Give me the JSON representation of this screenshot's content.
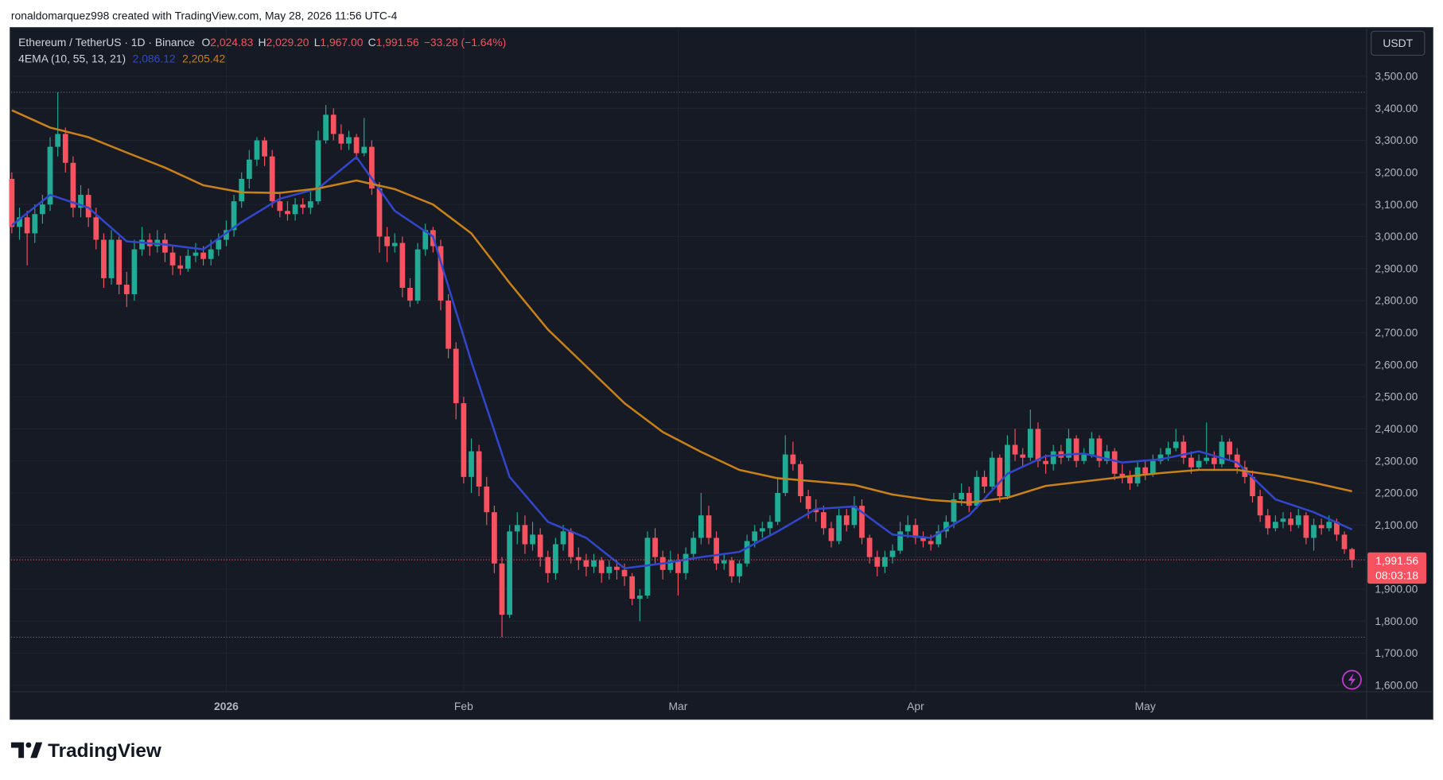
{
  "header": "ronaldomarquez998 created with TradingView.com, May 28, 2026 11:56 UTC-4",
  "brand": "TradingView",
  "chart_data": {
    "type": "candlestick",
    "legend": {
      "symbol": "Ethereum / TetherUS · 1D · Binance",
      "fields": [
        {
          "key": "O",
          "text": "2,024.83"
        },
        {
          "key": "H",
          "text": "2,029.20"
        },
        {
          "key": "L",
          "text": "1,967.00"
        },
        {
          "key": "C",
          "text": "1,991.56"
        }
      ],
      "change": "−33.28 (−1.64%)",
      "indicator": "4EMA (10, 55, 13, 21)"
    },
    "currency": "USDT",
    "last_price_label": "1,991.56",
    "countdown": "08:03:18",
    "up_color": "#22ab94",
    "down_color": "#f7525f",
    "xlim": [
      -0.1,
      176.9
    ],
    "xticks": [
      {
        "value": 28,
        "label": "2026"
      },
      {
        "value": 59,
        "label": "Feb"
      },
      {
        "value": 87,
        "label": "Mar"
      },
      {
        "value": 118,
        "label": "Apr"
      },
      {
        "value": 148,
        "label": "May"
      }
    ],
    "ylim": [
      1580,
      3649
    ],
    "yticks": [
      {
        "value": 1600,
        "label": "1,600.00"
      },
      {
        "value": 1700,
        "label": "1,700.00"
      },
      {
        "value": 1800,
        "label": "1,800.00"
      },
      {
        "value": 1900,
        "label": "1,900.00"
      },
      {
        "value": 2000,
        "label": "2,000.00"
      },
      {
        "value": 2100,
        "label": "2,100.00"
      },
      {
        "value": 2200,
        "label": "2,200.00"
      },
      {
        "value": 2300,
        "label": "2,300.00"
      },
      {
        "value": 2400,
        "label": "2,400.00"
      },
      {
        "value": 2500,
        "label": "2,500.00"
      },
      {
        "value": 2600,
        "label": "2,600.00"
      },
      {
        "value": 2700,
        "label": "2,700.00"
      },
      {
        "value": 2800,
        "label": "2,800.00"
      },
      {
        "value": 2900,
        "label": "2,900.00"
      },
      {
        "value": 3000,
        "label": "3,000.00"
      },
      {
        "value": 3100,
        "label": "3,100.00"
      },
      {
        "value": 3200,
        "label": "3,200.00"
      },
      {
        "value": 3300,
        "label": "3,300.00"
      },
      {
        "value": 3400,
        "label": "3,400.00"
      },
      {
        "value": 3500,
        "label": "3,500.00"
      }
    ],
    "grid": true,
    "ohlc": [
      [
        3180,
        3200,
        3010,
        3030
      ],
      [
        3030,
        3090,
        2990,
        3060
      ],
      [
        3060,
        3080,
        2910,
        3010
      ],
      [
        3010,
        3100,
        2980,
        3070
      ],
      [
        3070,
        3130,
        3040,
        3100
      ],
      [
        3100,
        3310,
        3080,
        3280
      ],
      [
        3280,
        3450,
        3250,
        3320
      ],
      [
        3320,
        3340,
        3200,
        3230
      ],
      [
        3230,
        3250,
        3060,
        3090
      ],
      [
        3090,
        3160,
        3060,
        3130
      ],
      [
        3130,
        3150,
        3030,
        3060
      ],
      [
        3060,
        3090,
        2960,
        2990
      ],
      [
        2990,
        3010,
        2840,
        2870
      ],
      [
        2870,
        3020,
        2850,
        2990
      ],
      [
        2990,
        3000,
        2820,
        2850
      ],
      [
        2850,
        2890,
        2780,
        2820
      ],
      [
        2820,
        2990,
        2800,
        2960
      ],
      [
        2960,
        3030,
        2940,
        2990
      ],
      [
        2990,
        3010,
        2940,
        2970
      ],
      [
        2970,
        3020,
        2950,
        2990
      ],
      [
        2990,
        3010,
        2920,
        2950
      ],
      [
        2950,
        2970,
        2880,
        2910
      ],
      [
        2910,
        2940,
        2880,
        2900
      ],
      [
        2900,
        2960,
        2890,
        2940
      ],
      [
        2940,
        2980,
        2920,
        2950
      ],
      [
        2950,
        2970,
        2910,
        2930
      ],
      [
        2930,
        2990,
        2910,
        2960
      ],
      [
        2960,
        3010,
        2940,
        2990
      ],
      [
        2990,
        3050,
        2970,
        3020
      ],
      [
        3020,
        3130,
        3000,
        3110
      ],
      [
        3110,
        3200,
        3090,
        3180
      ],
      [
        3180,
        3270,
        3150,
        3240
      ],
      [
        3240,
        3310,
        3220,
        3300
      ],
      [
        3300,
        3310,
        3220,
        3250
      ],
      [
        3250,
        3270,
        3090,
        3110
      ],
      [
        3110,
        3140,
        3060,
        3080
      ],
      [
        3080,
        3110,
        3050,
        3070
      ],
      [
        3070,
        3120,
        3050,
        3100
      ],
      [
        3100,
        3120,
        3070,
        3090
      ],
      [
        3090,
        3140,
        3070,
        3110
      ],
      [
        3110,
        3330,
        3100,
        3300
      ],
      [
        3300,
        3410,
        3290,
        3380
      ],
      [
        3380,
        3400,
        3300,
        3320
      ],
      [
        3320,
        3350,
        3270,
        3290
      ],
      [
        3290,
        3330,
        3270,
        3310
      ],
      [
        3310,
        3320,
        3240,
        3260
      ],
      [
        3260,
        3370,
        3250,
        3280
      ],
      [
        3280,
        3300,
        3130,
        3150
      ],
      [
        3150,
        3170,
        2950,
        3000
      ],
      [
        3000,
        3030,
        2920,
        2970
      ],
      [
        2970,
        3010,
        2950,
        2980
      ],
      [
        2980,
        3000,
        2810,
        2840
      ],
      [
        2840,
        2870,
        2780,
        2800
      ],
      [
        2800,
        2980,
        2790,
        2960
      ],
      [
        2960,
        3040,
        2940,
        3020
      ],
      [
        3020,
        3030,
        2950,
        2970
      ],
      [
        2970,
        2990,
        2770,
        2800
      ],
      [
        2800,
        2820,
        2620,
        2650
      ],
      [
        2650,
        2670,
        2430,
        2480
      ],
      [
        2480,
        2500,
        2230,
        2250
      ],
      [
        2250,
        2370,
        2200,
        2330
      ],
      [
        2330,
        2350,
        2190,
        2220
      ],
      [
        2220,
        2250,
        2100,
        2140
      ],
      [
        2140,
        2160,
        1950,
        1980
      ],
      [
        1980,
        2000,
        1750,
        1820
      ],
      [
        1820,
        2100,
        1810,
        2080
      ],
      [
        2080,
        2140,
        2040,
        2100
      ],
      [
        2100,
        2130,
        2010,
        2040
      ],
      [
        2040,
        2110,
        2020,
        2070
      ],
      [
        2070,
        2090,
        1970,
        2000
      ],
      [
        2000,
        2020,
        1920,
        1950
      ],
      [
        1950,
        2060,
        1930,
        2040
      ],
      [
        2040,
        2100,
        2020,
        2080
      ],
      [
        2080,
        2090,
        1980,
        2000
      ],
      [
        2000,
        2030,
        1960,
        1990
      ],
      [
        1990,
        2010,
        1940,
        1970
      ],
      [
        1970,
        2010,
        1950,
        1990
      ],
      [
        1990,
        2000,
        1920,
        1950
      ],
      [
        1950,
        1990,
        1930,
        1970
      ],
      [
        1970,
        1990,
        1930,
        1960
      ],
      [
        1960,
        1980,
        1910,
        1940
      ],
      [
        1940,
        1950,
        1850,
        1870
      ],
      [
        1870,
        1900,
        1800,
        1880
      ],
      [
        1880,
        2080,
        1870,
        2060
      ],
      [
        2060,
        2090,
        1980,
        2000
      ],
      [
        2000,
        2020,
        1930,
        1960
      ],
      [
        1960,
        2020,
        1950,
        1990
      ],
      [
        1990,
        2010,
        1880,
        1950
      ],
      [
        1950,
        2030,
        1930,
        2010
      ],
      [
        2010,
        2080,
        1990,
        2060
      ],
      [
        2060,
        2200,
        2040,
        2130
      ],
      [
        2130,
        2160,
        2040,
        2060
      ],
      [
        2060,
        2080,
        1960,
        1980
      ],
      [
        1980,
        2010,
        1960,
        1990
      ],
      [
        1990,
        2000,
        1920,
        1940
      ],
      [
        1940,
        1990,
        1920,
        1980
      ],
      [
        1980,
        2070,
        1970,
        2050
      ],
      [
        2050,
        2100,
        2030,
        2080
      ],
      [
        2080,
        2110,
        2060,
        2090
      ],
      [
        2090,
        2130,
        2070,
        2110
      ],
      [
        2110,
        2250,
        2100,
        2200
      ],
      [
        2200,
        2380,
        2190,
        2320
      ],
      [
        2320,
        2360,
        2270,
        2290
      ],
      [
        2290,
        2300,
        2170,
        2190
      ],
      [
        2190,
        2210,
        2120,
        2150
      ],
      [
        2150,
        2180,
        2110,
        2140
      ],
      [
        2140,
        2160,
        2070,
        2090
      ],
      [
        2090,
        2110,
        2030,
        2050
      ],
      [
        2050,
        2150,
        2040,
        2130
      ],
      [
        2130,
        2150,
        2080,
        2100
      ],
      [
        2100,
        2190,
        2090,
        2160
      ],
      [
        2160,
        2180,
        2040,
        2060
      ],
      [
        2060,
        2070,
        1980,
        2000
      ],
      [
        2000,
        2020,
        1940,
        1970
      ],
      [
        1970,
        2020,
        1950,
        2000
      ],
      [
        2000,
        2040,
        1980,
        2020
      ],
      [
        2020,
        2110,
        2010,
        2080
      ],
      [
        2080,
        2130,
        2060,
        2100
      ],
      [
        2100,
        2120,
        2040,
        2060
      ],
      [
        2060,
        2080,
        2030,
        2050
      ],
      [
        2050,
        2070,
        2020,
        2040
      ],
      [
        2040,
        2100,
        2030,
        2080
      ],
      [
        2080,
        2130,
        2060,
        2110
      ],
      [
        2110,
        2200,
        2090,
        2180
      ],
      [
        2180,
        2230,
        2160,
        2200
      ],
      [
        2200,
        2220,
        2140,
        2160
      ],
      [
        2160,
        2270,
        2150,
        2250
      ],
      [
        2250,
        2270,
        2200,
        2220
      ],
      [
        2220,
        2330,
        2210,
        2310
      ],
      [
        2310,
        2320,
        2170,
        2190
      ],
      [
        2190,
        2380,
        2180,
        2350
      ],
      [
        2350,
        2400,
        2300,
        2320
      ],
      [
        2320,
        2340,
        2280,
        2310
      ],
      [
        2310,
        2460,
        2300,
        2400
      ],
      [
        2400,
        2420,
        2280,
        2300
      ],
      [
        2300,
        2320,
        2260,
        2290
      ],
      [
        2290,
        2350,
        2270,
        2330
      ],
      [
        2330,
        2350,
        2290,
        2310
      ],
      [
        2310,
        2400,
        2300,
        2370
      ],
      [
        2370,
        2380,
        2280,
        2300
      ],
      [
        2300,
        2340,
        2290,
        2320
      ],
      [
        2320,
        2390,
        2310,
        2370
      ],
      [
        2370,
        2380,
        2280,
        2300
      ],
      [
        2300,
        2350,
        2290,
        2330
      ],
      [
        2330,
        2340,
        2240,
        2260
      ],
      [
        2260,
        2290,
        2230,
        2250
      ],
      [
        2250,
        2270,
        2210,
        2230
      ],
      [
        2230,
        2300,
        2220,
        2280
      ],
      [
        2280,
        2300,
        2240,
        2260
      ],
      [
        2260,
        2320,
        2250,
        2300
      ],
      [
        2300,
        2340,
        2290,
        2320
      ],
      [
        2320,
        2360,
        2300,
        2340
      ],
      [
        2340,
        2400,
        2330,
        2360
      ],
      [
        2360,
        2380,
        2290,
        2310
      ],
      [
        2310,
        2330,
        2260,
        2280
      ],
      [
        2280,
        2320,
        2270,
        2300
      ],
      [
        2300,
        2420,
        2290,
        2310
      ],
      [
        2310,
        2330,
        2270,
        2290
      ],
      [
        2290,
        2380,
        2280,
        2360
      ],
      [
        2360,
        2370,
        2300,
        2320
      ],
      [
        2320,
        2340,
        2260,
        2280
      ],
      [
        2280,
        2300,
        2230,
        2250
      ],
      [
        2250,
        2270,
        2170,
        2190
      ],
      [
        2190,
        2210,
        2110,
        2130
      ],
      [
        2130,
        2150,
        2070,
        2090
      ],
      [
        2090,
        2130,
        2080,
        2110
      ],
      [
        2110,
        2140,
        2090,
        2120
      ],
      [
        2120,
        2140,
        2080,
        2100
      ],
      [
        2100,
        2150,
        2090,
        2130
      ],
      [
        2130,
        2140,
        2040,
        2060
      ],
      [
        2060,
        2120,
        2020,
        2100
      ],
      [
        2100,
        2120,
        2070,
        2090
      ],
      [
        2090,
        2130,
        2080,
        2110
      ],
      [
        2110,
        2120,
        2050,
        2070
      ],
      [
        2070,
        2080,
        2010,
        2024.83
      ],
      [
        2024.83,
        2029.2,
        1967,
        1991.56
      ]
    ],
    "high_index": 6,
    "low_index": 64,
    "series": [
      {
        "color": "#3246c9",
        "value_label": "2,086.12",
        "x": [
          0,
          5,
          10,
          15,
          20,
          25,
          30,
          35,
          40,
          45,
          50,
          55,
          60,
          65,
          70,
          75,
          80,
          85,
          90,
          95,
          100,
          105,
          110,
          115,
          120,
          125,
          130,
          135,
          140,
          145,
          150,
          155,
          160,
          165,
          170,
          175
        ],
        "values": [
          3035,
          3130,
          3090,
          2985,
          2975,
          2960,
          3045,
          3118,
          3150,
          3248,
          3080,
          3000,
          2610,
          2250,
          2110,
          2060,
          1965,
          1980,
          2000,
          2016,
          2080,
          2150,
          2158,
          2070,
          2060,
          2130,
          2260,
          2315,
          2323,
          2295,
          2305,
          2330,
          2295,
          2180,
          2140,
          2086.12
        ]
      },
      {
        "color": "#c7801a",
        "value_label": "2,205.42",
        "x": [
          0,
          5,
          10,
          15,
          20,
          25,
          30,
          35,
          40,
          45,
          50,
          55,
          60,
          65,
          70,
          75,
          80,
          85,
          90,
          95,
          100,
          105,
          110,
          115,
          120,
          125,
          130,
          135,
          140,
          145,
          150,
          155,
          160,
          165,
          170,
          175
        ],
        "values": [
          3394,
          3340,
          3310,
          3262,
          3215,
          3160,
          3138,
          3136,
          3150,
          3175,
          3148,
          3100,
          3010,
          2855,
          2710,
          2595,
          2480,
          2390,
          2328,
          2272,
          2246,
          2236,
          2225,
          2195,
          2178,
          2170,
          2185,
          2222,
          2236,
          2250,
          2262,
          2272,
          2272,
          2255,
          2232,
          2205.42
        ]
      }
    ]
  }
}
